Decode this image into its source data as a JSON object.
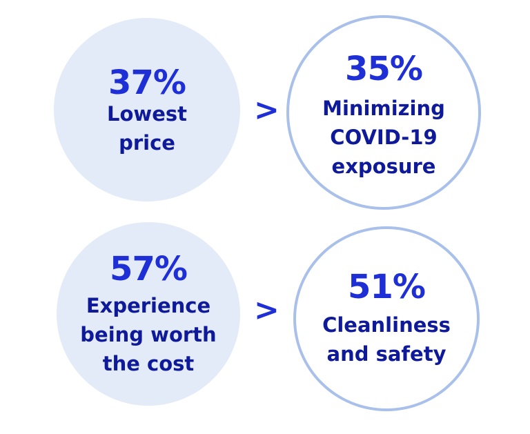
{
  "comparisons": [
    {
      "left": {
        "percent": "37%",
        "label_lines": [
          "Lowest",
          "price"
        ]
      },
      "separator": ">",
      "right": {
        "percent": "35%",
        "label_lines": [
          "Minimizing",
          "COVID-19",
          "exposure"
        ]
      }
    },
    {
      "left": {
        "percent": "57%",
        "label_lines": [
          "Experience",
          "being worth",
          "the cost"
        ]
      },
      "separator": ">",
      "right": {
        "percent": "51%",
        "label_lines": [
          "Cleanliness",
          "and safety"
        ]
      }
    }
  ],
  "colors": {
    "percent_text": "#1f2fd6",
    "label_text": "#0e1a9a",
    "filled_circle": "#e3ebf8",
    "outline_circle": "#a9c0ea"
  }
}
